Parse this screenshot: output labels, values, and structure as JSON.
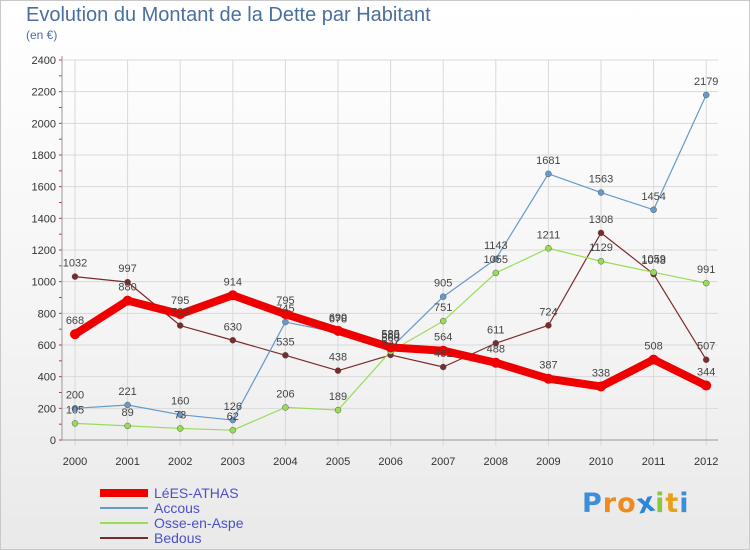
{
  "chart_data": {
    "type": "line",
    "title": "Evolution du Montant de la Dette par Habitant",
    "subtitle": "(en €)",
    "xlabel": "",
    "ylabel": "",
    "ylim": [
      0,
      2400
    ],
    "yticks": [
      0,
      200,
      400,
      600,
      800,
      1000,
      1200,
      1400,
      1600,
      1800,
      2000,
      2200,
      2400
    ],
    "categories": [
      "2000",
      "2001",
      "2002",
      "2003",
      "2004",
      "2005",
      "2006",
      "2007",
      "2008",
      "2009",
      "2010",
      "2011",
      "2012"
    ],
    "grid": true,
    "legend_position": "bottom-left",
    "series": [
      {
        "name": "Bedous",
        "color": "#7b2b2b",
        "values": [
          1032,
          997,
          723,
          630,
          535,
          438,
          537,
          461,
          611,
          724,
          1308,
          1048,
          507
        ]
      },
      {
        "name": "Osse-en-Aspe",
        "color": "#99dd55",
        "values": [
          105,
          89,
          73,
          62,
          206,
          189,
          560,
          751,
          1055,
          1211,
          1129,
          1059,
          991
        ]
      },
      {
        "name": "Accous",
        "color": "#6699cc",
        "values": [
          200,
          221,
          160,
          126,
          745,
          678,
          580,
          905,
          1143,
          1681,
          1563,
          1454,
          2179
        ]
      },
      {
        "name": "LéES-ATHAS",
        "color": "#ee0000",
        "values": [
          668,
          880,
          795,
          914,
          795,
          690,
          585,
          564,
          488,
          387,
          338,
          508,
          344
        ]
      }
    ],
    "legend": [
      "LéES-ATHAS",
      "Accous",
      "Osse-en-Aspe",
      "Bedous"
    ]
  },
  "logo": {
    "text": "Proxiti",
    "letters": [
      "P",
      "r",
      "o",
      "x",
      "i",
      "t",
      "i"
    ],
    "colors": [
      "#3b8fd8",
      "#f08a1c",
      "#f08a1c",
      "#2b88d8",
      "#8cc63f",
      "#e8a21a",
      "#3b8fd8"
    ]
  }
}
